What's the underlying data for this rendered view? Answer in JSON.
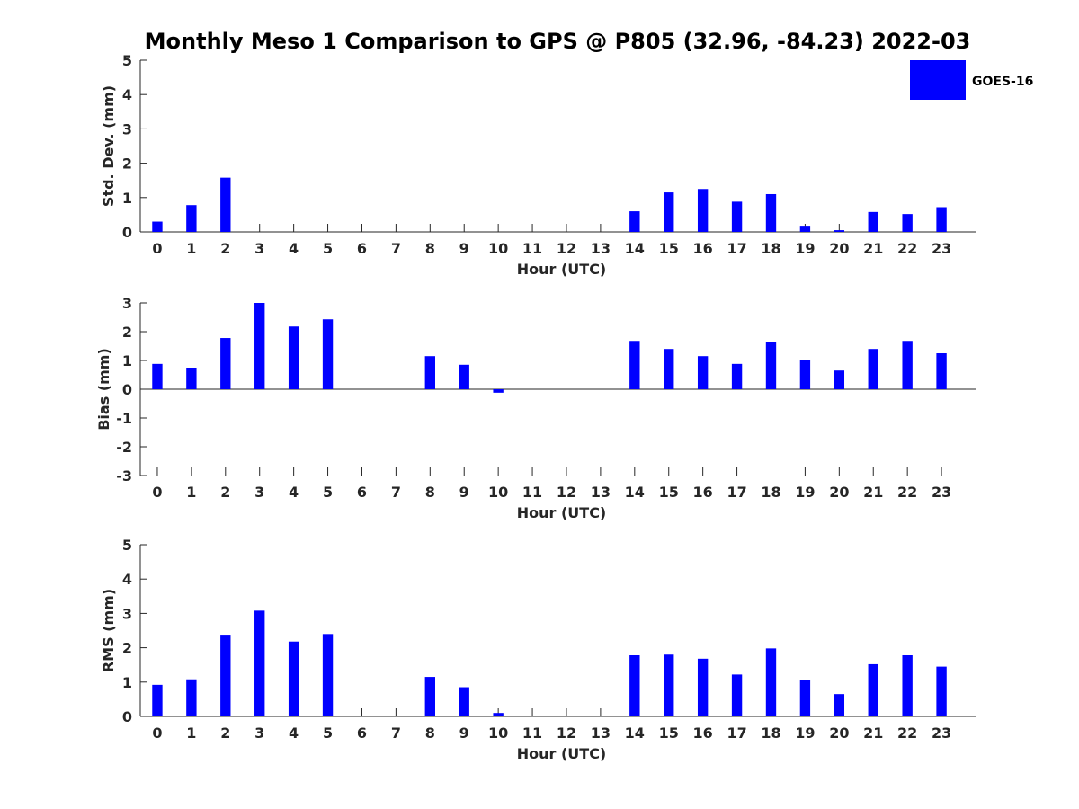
{
  "chart_data": [
    {
      "type": "bar",
      "title": "Monthly Meso 1 Comparison to GPS @ P805 (32.96, -84.23) 2022-03",
      "xlabel": "Hour (UTC)",
      "ylabel": "Std. Dev. (mm)",
      "ylim": [
        0,
        5
      ],
      "yticks": [
        0,
        1,
        2,
        3,
        4,
        5
      ],
      "categories": [
        "0",
        "1",
        "2",
        "3",
        "4",
        "5",
        "6",
        "7",
        "8",
        "9",
        "10",
        "11",
        "12",
        "13",
        "14",
        "15",
        "16",
        "17",
        "18",
        "19",
        "20",
        "21",
        "22",
        "23"
      ],
      "series": [
        {
          "name": "GOES-16",
          "values": [
            0.3,
            0.78,
            1.58,
            0,
            0,
            0,
            0,
            0,
            0,
            0,
            0,
            0,
            0,
            0,
            0.6,
            1.15,
            1.25,
            0.88,
            1.1,
            0.18,
            0.05,
            0.58,
            0.52,
            0.72
          ]
        }
      ],
      "legend": "top-right"
    },
    {
      "type": "bar",
      "xlabel": "Hour (UTC)",
      "ylabel": "Bias (mm)",
      "ylim": [
        -3,
        3
      ],
      "yticks": [
        -3,
        -2,
        -1,
        0,
        1,
        2,
        3
      ],
      "categories": [
        "0",
        "1",
        "2",
        "3",
        "4",
        "5",
        "6",
        "7",
        "8",
        "9",
        "10",
        "11",
        "12",
        "13",
        "14",
        "15",
        "16",
        "17",
        "18",
        "19",
        "20",
        "21",
        "22",
        "23"
      ],
      "series": [
        {
          "name": "GOES-16",
          "values": [
            0.88,
            0.75,
            1.78,
            3.0,
            2.18,
            2.43,
            0,
            0,
            1.15,
            0.85,
            -0.12,
            0,
            0,
            0,
            1.68,
            1.4,
            1.15,
            0.88,
            1.65,
            1.02,
            0.65,
            1.4,
            1.68,
            1.25
          ]
        }
      ]
    },
    {
      "type": "bar",
      "xlabel": "Hour (UTC)",
      "ylabel": "RMS (mm)",
      "ylim": [
        0,
        5
      ],
      "yticks": [
        0,
        1,
        2,
        3,
        4,
        5
      ],
      "categories": [
        "0",
        "1",
        "2",
        "3",
        "4",
        "5",
        "6",
        "7",
        "8",
        "9",
        "10",
        "11",
        "12",
        "13",
        "14",
        "15",
        "16",
        "17",
        "18",
        "19",
        "20",
        "21",
        "22",
        "23"
      ],
      "series": [
        {
          "name": "GOES-16",
          "values": [
            0.92,
            1.08,
            2.38,
            3.08,
            2.18,
            2.4,
            0,
            0,
            1.15,
            0.85,
            0.1,
            0,
            0,
            0,
            1.78,
            1.8,
            1.68,
            1.22,
            1.98,
            1.05,
            0.65,
            1.52,
            1.78,
            1.45
          ]
        }
      ]
    }
  ],
  "legend": {
    "label": "GOES-16"
  },
  "colors": {
    "bar": "#0000ff",
    "axis": "#262626"
  }
}
